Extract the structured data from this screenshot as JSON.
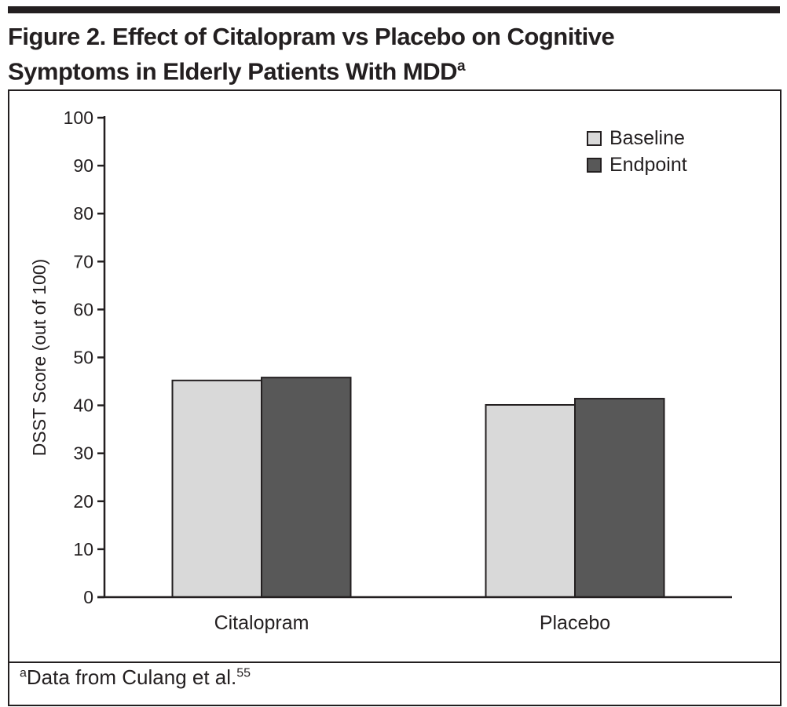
{
  "title_line1": "Figure 2. Effect of Citalopram vs Placebo on Cognitive",
  "title_line2": "Symptoms in Elderly Patients With MDD",
  "title_sup": "a",
  "footnote": {
    "sup": "a",
    "text": "Data from Culang et al.",
    "ref": "55"
  },
  "chart_data": {
    "type": "bar",
    "categories": [
      "Citalopram",
      "Placebo"
    ],
    "series": [
      {
        "name": "Baseline",
        "values": [
          45.2,
          40.1
        ],
        "color": "#d9d9d9"
      },
      {
        "name": "Endpoint",
        "values": [
          45.8,
          41.4
        ],
        "color": "#585858"
      }
    ],
    "ylabel": "DSST Score (out of 100)",
    "xlabel": "",
    "ylim": [
      0,
      100
    ],
    "yticks": [
      0,
      10,
      20,
      30,
      40,
      50,
      60,
      70,
      80,
      90,
      100
    ],
    "legend": "top-right",
    "grid": false
  }
}
